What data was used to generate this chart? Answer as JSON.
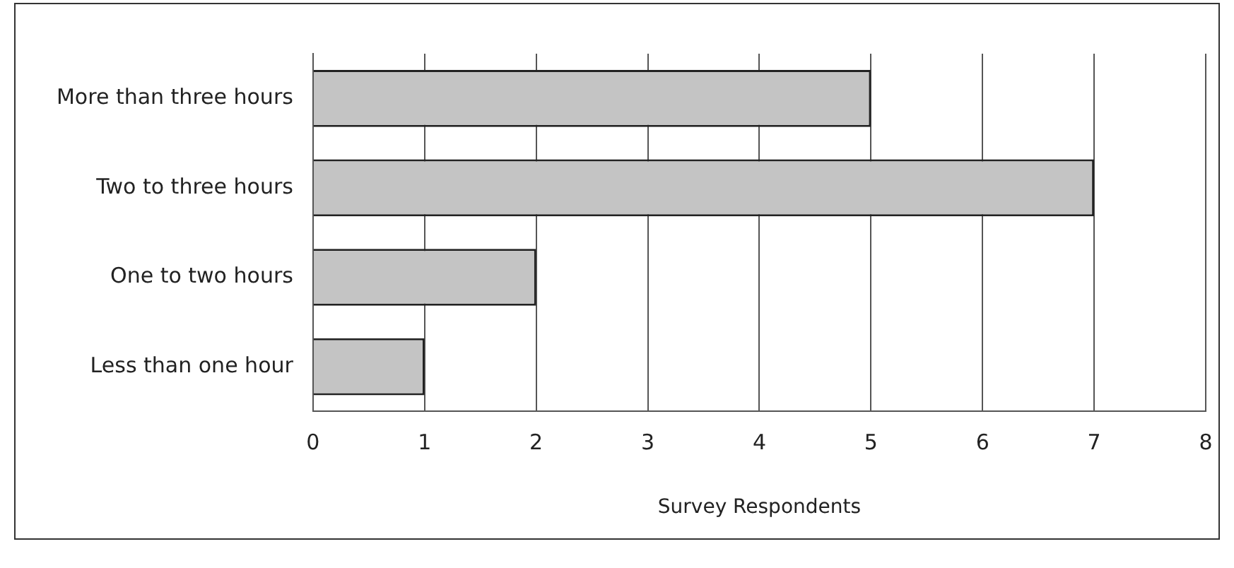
{
  "chart_data": {
    "type": "bar",
    "orientation": "horizontal",
    "categories": [
      "More than three hours",
      "Two to three hours",
      "One to two hours",
      "Less than one hour"
    ],
    "values": [
      5,
      7,
      2,
      1
    ],
    "color": "#c4c4c4",
    "xlabel": "Survey Respondents",
    "xlim": [
      0,
      8
    ],
    "xticks": [
      0,
      1,
      2,
      3,
      4,
      5,
      6,
      7,
      8
    ],
    "grid": "x",
    "legend": false
  }
}
